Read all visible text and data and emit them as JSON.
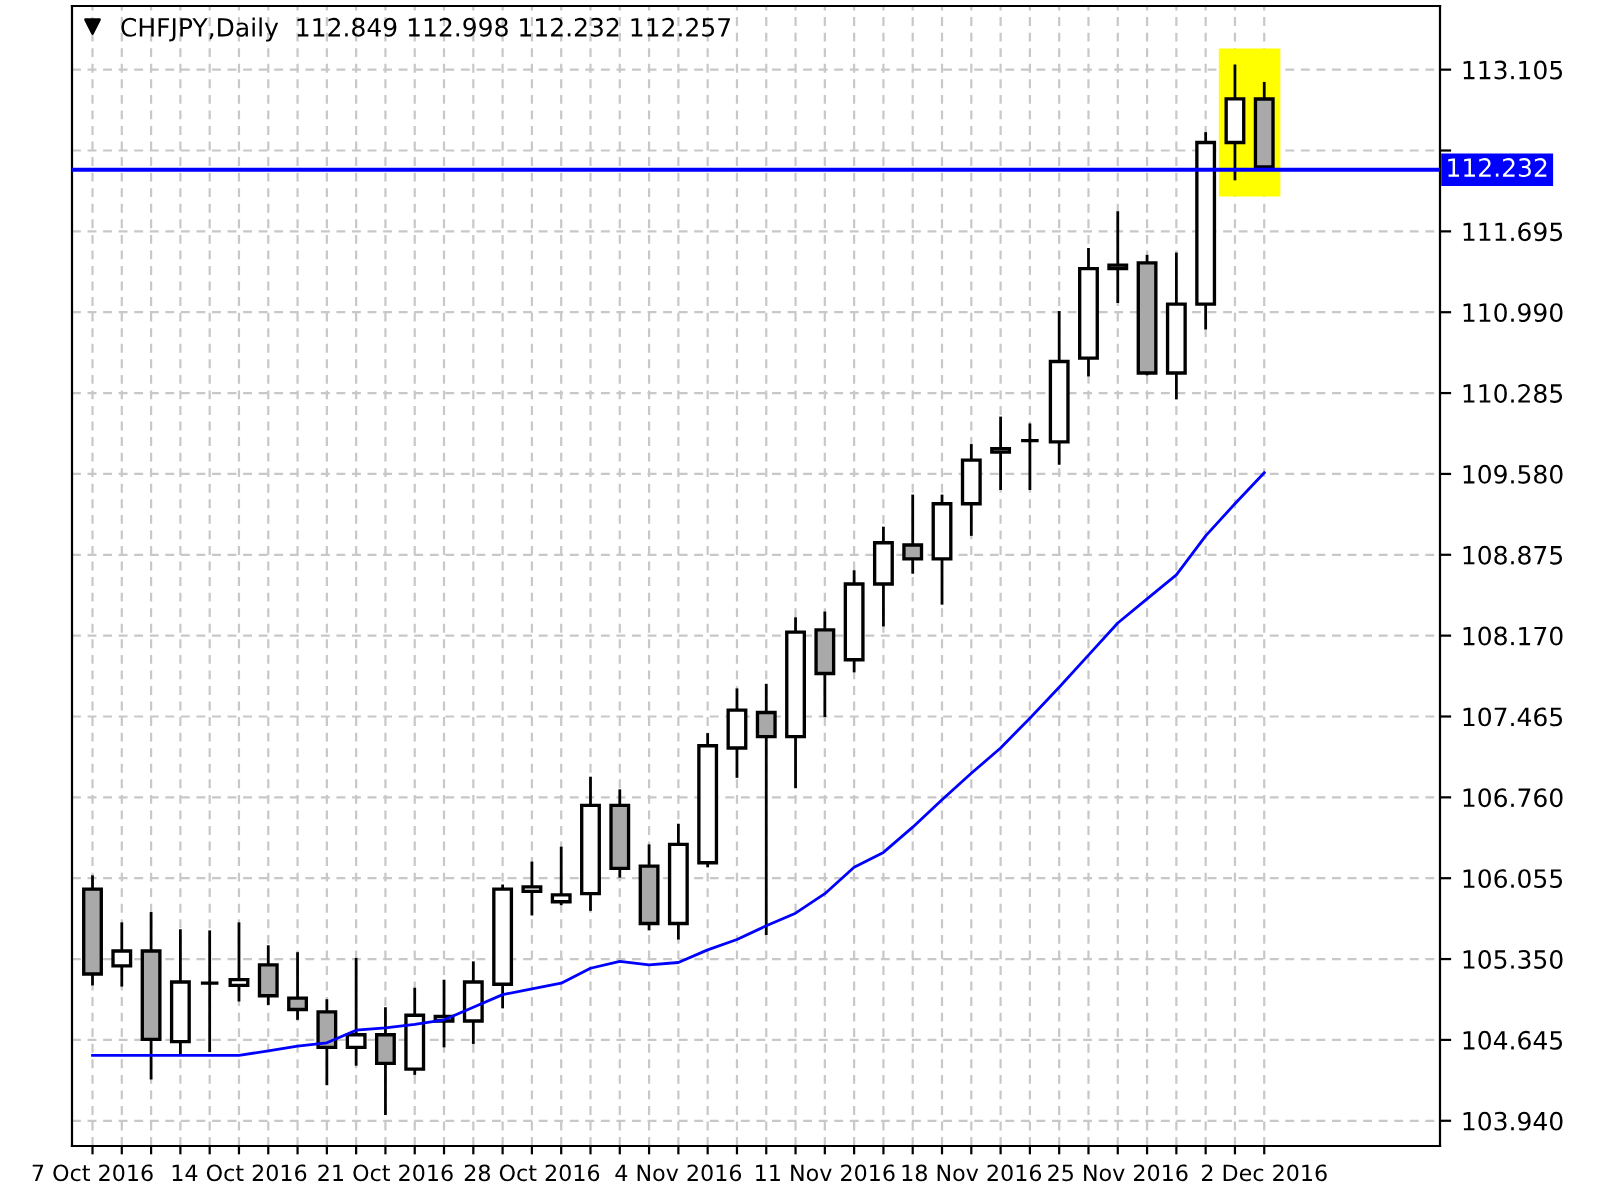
{
  "chart_data": {
    "type": "candlestick",
    "title": "CHFJPY,Daily  112.849 112.998 112.232 112.257",
    "categories": [
      "7 Oct 2016",
      null,
      null,
      null,
      null,
      "14 Oct 2016",
      null,
      null,
      null,
      null,
      "21 Oct 2016",
      null,
      null,
      null,
      null,
      "28 Oct 2016",
      null,
      null,
      null,
      null,
      "4 Nov 2016",
      null,
      null,
      null,
      null,
      "11 Nov 2016",
      null,
      null,
      null,
      null,
      "18 Nov 2016",
      null,
      null,
      null,
      null,
      "25 Nov 2016",
      null,
      null,
      null,
      null,
      "2 Dec 2016"
    ],
    "ohlc": [
      [
        105.96,
        106.08,
        105.12,
        105.22
      ],
      [
        105.29,
        105.67,
        105.11,
        105.42
      ],
      [
        105.42,
        105.76,
        104.3,
        104.65
      ],
      [
        104.63,
        105.61,
        104.52,
        105.15
      ],
      [
        105.14,
        105.6,
        104.54,
        105.14
      ],
      [
        105.12,
        105.67,
        104.98,
        105.17
      ],
      [
        105.3,
        105.47,
        104.95,
        105.03
      ],
      [
        105.01,
        105.41,
        104.82,
        104.91
      ],
      [
        104.89,
        105.0,
        104.25,
        104.58
      ],
      [
        104.58,
        105.36,
        104.42,
        104.69
      ],
      [
        104.69,
        104.93,
        103.99,
        104.44
      ],
      [
        104.39,
        105.1,
        104.34,
        104.86
      ],
      [
        104.85,
        105.17,
        104.58,
        104.81
      ],
      [
        104.81,
        105.33,
        104.61,
        105.15
      ],
      [
        105.13,
        106.0,
        104.92,
        105.96
      ],
      [
        105.94,
        106.2,
        105.73,
        105.98
      ],
      [
        105.85,
        106.33,
        105.82,
        105.91
      ],
      [
        105.92,
        106.94,
        105.77,
        106.69
      ],
      [
        106.69,
        106.83,
        106.06,
        106.14
      ],
      [
        106.16,
        106.35,
        105.6,
        105.66
      ],
      [
        105.66,
        106.53,
        105.52,
        106.35
      ],
      [
        106.19,
        107.32,
        106.15,
        107.21
      ],
      [
        107.19,
        107.71,
        106.93,
        107.52
      ],
      [
        107.5,
        107.75,
        105.56,
        107.29
      ],
      [
        107.29,
        108.33,
        106.84,
        108.2
      ],
      [
        108.22,
        108.38,
        107.46,
        107.84
      ],
      [
        107.96,
        108.74,
        107.85,
        108.62
      ],
      [
        108.62,
        109.12,
        108.25,
        108.98
      ],
      [
        108.96,
        109.4,
        108.71,
        108.84
      ],
      [
        108.84,
        109.4,
        108.44,
        109.32
      ],
      [
        109.32,
        109.84,
        109.04,
        109.7
      ],
      [
        109.77,
        110.08,
        109.44,
        109.8
      ],
      [
        109.87,
        110.02,
        109.44,
        109.87
      ],
      [
        109.86,
        111.0,
        109.66,
        110.56
      ],
      [
        110.59,
        111.55,
        110.43,
        111.37
      ],
      [
        111.4,
        111.87,
        111.07,
        111.37
      ],
      [
        111.42,
        111.49,
        110.44,
        110.46
      ],
      [
        110.46,
        111.51,
        110.23,
        111.06
      ],
      [
        111.06,
        112.56,
        110.84,
        112.47
      ],
      [
        112.47,
        113.15,
        112.14,
        112.85
      ],
      [
        112.849,
        112.998,
        112.232,
        112.257
      ]
    ],
    "colors": [
      "#a9a9a9",
      "#ffffff",
      "#a9a9a9",
      "#ffffff",
      "#000000",
      "#ffffff",
      "#a9a9a9",
      "#a9a9a9",
      "#a9a9a9",
      "#ffffff",
      "#a9a9a9",
      "#ffffff",
      "#a9a9a9",
      "#ffffff",
      "#ffffff",
      "#ffffff",
      "#ffffff",
      "#ffffff",
      "#a9a9a9",
      "#a9a9a9",
      "#ffffff",
      "#ffffff",
      "#ffffff",
      "#a9a9a9",
      "#ffffff",
      "#a9a9a9",
      "#ffffff",
      "#ffffff",
      "#a9a9a9",
      "#ffffff",
      "#ffffff",
      "#ffffff",
      "#000000",
      "#ffffff",
      "#ffffff",
      "#a9a9a9",
      "#a9a9a9",
      "#ffffff",
      "#ffffff",
      "#ffffff",
      "#a9a9a9"
    ],
    "series": [
      {
        "type": "line",
        "color": "#0000ff",
        "values": [
          104.51,
          104.51,
          104.51,
          104.51,
          104.51,
          104.51,
          104.55,
          104.59,
          104.62,
          104.73,
          104.75,
          104.78,
          104.82,
          104.93,
          105.04,
          105.09,
          105.14,
          105.27,
          105.33,
          105.3,
          105.32,
          105.43,
          105.52,
          105.64,
          105.75,
          105.92,
          106.15,
          106.28,
          106.5,
          106.74,
          106.97,
          107.19,
          107.45,
          107.72,
          108.0,
          108.28,
          108.49,
          108.7,
          109.04,
          109.32,
          109.59
        ]
      }
    ],
    "ref_lines": [
      {
        "axis": "y",
        "value": 112.232,
        "label": "112.232",
        "color": "#0000ff"
      }
    ],
    "ylim": [
      103.72,
      113.66
    ],
    "yticks": [
      {
        "value": 103.94,
        "label": "103.940"
      },
      {
        "value": 104.645,
        "label": "104.645"
      },
      {
        "value": 105.35,
        "label": "105.350"
      },
      {
        "value": 106.055,
        "label": "106.055"
      },
      {
        "value": 106.76,
        "label": "106.760"
      },
      {
        "value": 107.465,
        "label": "107.465"
      },
      {
        "value": 108.17,
        "label": "108.170"
      },
      {
        "value": 108.875,
        "label": "108.875"
      },
      {
        "value": 109.58,
        "label": "109.580"
      },
      {
        "value": 110.285,
        "label": "110.285"
      },
      {
        "value": 110.99,
        "label": "110.990"
      },
      {
        "value": 111.695,
        "label": "111.695"
      },
      {
        "value": 112.4,
        "label": null
      },
      {
        "value": 113.105,
        "label": "113.105"
      }
    ],
    "grid": true
  }
}
